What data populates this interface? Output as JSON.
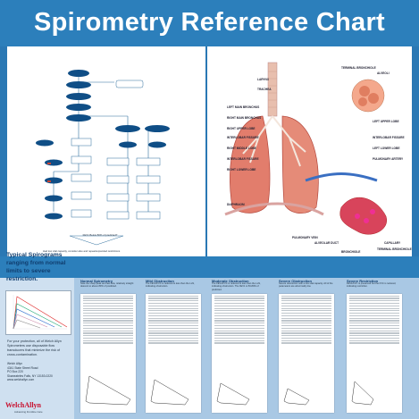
{
  "header": {
    "title": "Spirometry Reference Chart"
  },
  "flowchart": {
    "nodes": [
      "START",
      "FEV1/FVC",
      "≥ LLN",
      "FEV1/FVC",
      "FVC",
      "FEV1/FVC",
      "NORMAL",
      "RESTRICTION",
      "OBSTRUCTION"
    ],
    "footer_question": "Had low vital capacity, consider also and repeat/expanded restrictions",
    "bottom_question": "FEV1 Below 80% of predicted?"
  },
  "anatomy": {
    "labels_left": [
      "LARYNX",
      "TRACHEA",
      "LEFT MAIN BRONCHUS",
      "RIGHT MAIN BRONCHUS",
      "RIGHT UPPER LOBE",
      "INTERLOBAR FISSURE",
      "RIGHT MIDDLE LOBE",
      "INTERLOBAR FISSURE",
      "RIGHT LOWER LOBE",
      "DIAPHRAGM"
    ],
    "labels_right": [
      "TERMINAL BRONCHIOLE",
      "ALVEOLI",
      "LEFT UPPER LOBE",
      "INTERLOBAR FISSURE",
      "LEFT LOWER LOBE",
      "PULMONARY ARTERY",
      "CAPILLARY",
      "TERMINAL BRONCHIOLE",
      "BRONCHIOLE",
      "ALVEOLAR DUCT",
      "PULMONARY VEIN"
    ]
  },
  "left_column": {
    "typical": "Typical Spirograms ranging from normal limits to severe restriction.",
    "professional": "For your protection, all of Welch Allyn Spirometers use disposable flow transducers that minimize the risk of cross-contamination.",
    "address": [
      "Welch Allyn",
      "4341 State Street Road",
      "PO Box 220",
      "Skaneateles Falls, NY 13153-0220",
      "www.welchallyn.com"
    ],
    "logo": "WelchAllyn",
    "tagline": "Advancing Frontline Care"
  },
  "sheets": [
    {
      "title": "Normal Spirometry",
      "desc": "Note the sharp peak and fast flow, relatively straight descent to above 80% of predicted."
    },
    {
      "title": "Mild Obstruction",
      "desc": "The FEV1/FVC is reduced to less than the LLN, indicating obstruction."
    },
    {
      "title": "Moderate Obstruction",
      "desc": "The FEV1/FVC is reduced to less than the LLN, indicating obstruction. The FEV1 is 50-80% of predicted."
    },
    {
      "title": "Severe Obstruction",
      "desc": "Severe obstruction with a low vital capacity. All of the parameters are abnormally low."
    },
    {
      "title": "Severe Restriction",
      "desc": "FEV1/FVC is preserved but the FVC is reduced, indicating restriction."
    }
  ]
}
